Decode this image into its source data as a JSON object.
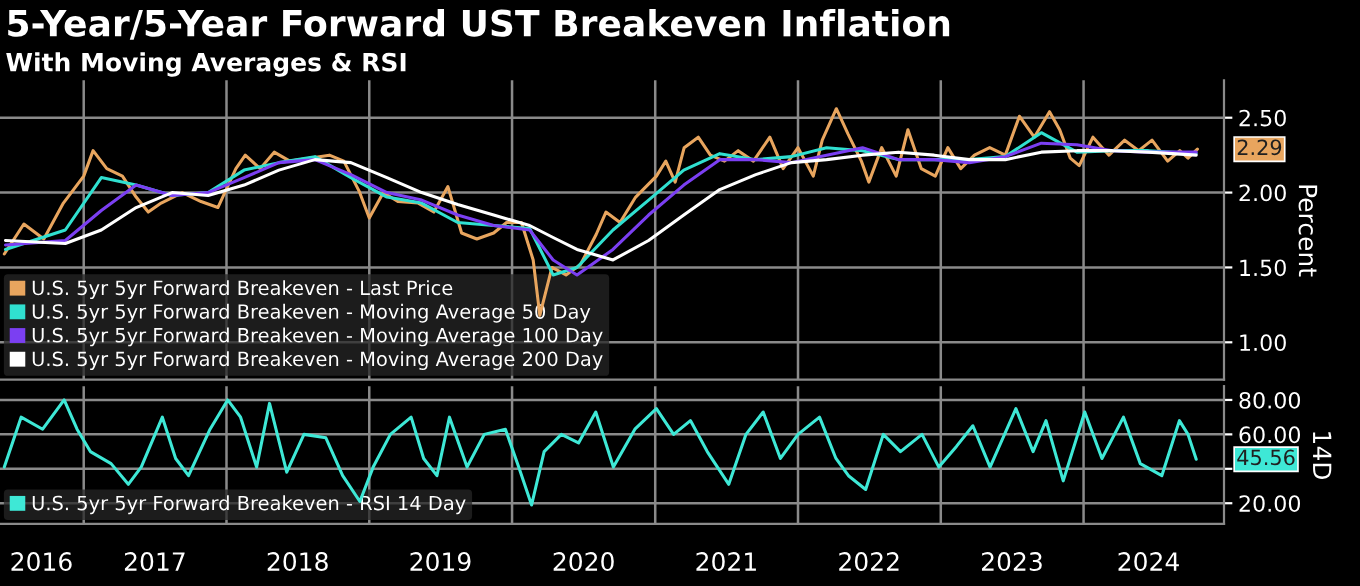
{
  "chart_data": [
    {
      "type": "line",
      "title": "5-Year/5-Year Forward UST Breakeven Inflation",
      "subtitle": "With Moving Averages & RSI",
      "ylabel": "Percent",
      "xlim": [
        "2016-06-01",
        "2024-12-25"
      ],
      "ylim": [
        0.75,
        2.75
      ],
      "xticks": [
        {
          "value": "2017-01-01",
          "label": null
        },
        {
          "value": "2018-01-01",
          "label": null
        },
        {
          "value": "2019-01-01",
          "label": null
        },
        {
          "value": "2020-01-01",
          "label": null
        },
        {
          "value": "2021-01-01",
          "label": null
        },
        {
          "value": "2022-01-01",
          "label": null
        },
        {
          "value": "2023-01-01",
          "label": null
        },
        {
          "value": "2024-01-01",
          "label": null
        }
      ],
      "yticks": [
        {
          "value": 1,
          "label": "1.00"
        },
        {
          "value": 1.5,
          "label": "1.50"
        },
        {
          "value": 2,
          "label": "2.00"
        },
        {
          "value": 2.5,
          "label": "2.50"
        }
      ],
      "tick_labels": "y",
      "grid": true,
      "legend": "bottom left",
      "annotations": [
        {
          "text": "2.29",
          "x": "2024-10-18",
          "y": 2.29
        }
      ],
      "series": [
        {
          "name": "U.S. 5yr 5yr Forward Breakeven - Last Price",
          "color": "#e8a55e",
          "x": [
            "2016-06-12",
            "2016-08-01",
            "2016-09-21",
            "2016-11-10",
            "2017-01-01",
            "2017-01-25",
            "2017-03-01",
            "2017-04-10",
            "2017-05-15",
            "2017-06-15",
            "2017-07-18",
            "2017-09-10",
            "2017-10-28",
            "2017-12-10",
            "2018-01-25",
            "2018-02-18",
            "2018-03-28",
            "2018-05-03",
            "2018-06-12",
            "2018-08-01",
            "2018-09-21",
            "2018-10-28",
            "2018-12-06",
            "2019-01-01",
            "2019-02-06",
            "2019-03-15",
            "2019-05-06",
            "2019-06-15",
            "2019-07-21",
            "2019-08-25",
            "2019-10-03",
            "2019-11-15",
            "2019-12-18",
            "2020-01-25",
            "2020-02-24",
            "2020-03-12",
            "2020-04-12",
            "2020-05-18",
            "2020-06-24",
            "2020-08-03",
            "2020-08-28",
            "2020-10-03",
            "2020-11-12",
            "2021-01-04",
            "2021-01-28",
            "2021-02-21",
            "2021-03-16",
            "2021-04-21",
            "2021-05-22",
            "2021-06-27",
            "2021-08-01",
            "2021-09-09",
            "2021-10-21",
            "2021-11-24",
            "2022-01-01",
            "2022-02-09",
            "2022-03-04",
            "2022-04-09",
            "2022-05-09",
            "2022-06-12",
            "2022-07-01",
            "2022-08-03",
            "2022-09-09",
            "2022-10-09",
            "2022-11-12",
            "2022-12-18",
            "2023-01-19",
            "2023-02-21",
            "2023-03-28",
            "2023-05-06",
            "2023-06-15",
            "2023-07-21",
            "2023-08-28",
            "2023-10-06",
            "2023-11-01",
            "2023-11-28",
            "2023-12-21",
            "2024-01-25",
            "2024-03-06",
            "2024-04-15",
            "2024-05-21",
            "2024-06-24",
            "2024-08-03",
            "2024-09-03",
            "2024-09-24",
            "2024-10-18"
          ],
          "values": [
            1.59,
            1.79,
            1.69,
            1.93,
            2.11,
            2.28,
            2.16,
            2.11,
            1.97,
            1.87,
            1.93,
            2.0,
            1.94,
            1.9,
            2.16,
            2.25,
            2.16,
            2.27,
            2.21,
            2.23,
            2.25,
            2.21,
            2.01,
            1.83,
            2.0,
            1.94,
            1.93,
            1.87,
            2.04,
            1.73,
            1.69,
            1.73,
            1.8,
            1.8,
            1.55,
            1.18,
            1.5,
            1.45,
            1.52,
            1.72,
            1.87,
            1.8,
            1.97,
            2.11,
            2.21,
            2.07,
            2.3,
            2.37,
            2.25,
            2.21,
            2.28,
            2.21,
            2.37,
            2.16,
            2.3,
            2.11,
            2.35,
            2.56,
            2.39,
            2.21,
            2.07,
            2.3,
            2.11,
            2.42,
            2.16,
            2.11,
            2.3,
            2.16,
            2.25,
            2.3,
            2.25,
            2.51,
            2.37,
            2.54,
            2.42,
            2.23,
            2.18,
            2.37,
            2.25,
            2.35,
            2.28,
            2.35,
            2.21,
            2.28,
            2.23,
            2.29
          ]
        },
        {
          "name": "U.S. 5yr 5yr Forward Breakeven - Moving Average 50 Day",
          "color": "#30e0d0",
          "x": [
            "2016-06-15",
            "2016-11-15",
            "2017-02-15",
            "2017-05-15",
            "2017-08-15",
            "2017-11-15",
            "2018-02-15",
            "2018-05-15",
            "2018-08-15",
            "2018-11-15",
            "2019-02-15",
            "2019-05-15",
            "2019-08-15",
            "2019-11-15",
            "2020-02-15",
            "2020-04-15",
            "2020-06-15",
            "2020-09-15",
            "2020-12-15",
            "2021-03-15",
            "2021-06-15",
            "2021-09-15",
            "2021-12-15",
            "2022-03-15",
            "2022-06-15",
            "2022-09-15",
            "2022-12-15",
            "2023-03-15",
            "2023-06-15",
            "2023-09-15",
            "2023-12-15",
            "2024-03-15",
            "2024-06-15",
            "2024-10-15"
          ],
          "values": [
            1.62,
            1.75,
            2.1,
            2.05,
            1.98,
            2.0,
            2.15,
            2.2,
            2.24,
            2.1,
            1.97,
            1.93,
            1.8,
            1.78,
            1.76,
            1.45,
            1.5,
            1.75,
            1.95,
            2.15,
            2.26,
            2.22,
            2.24,
            2.3,
            2.28,
            2.22,
            2.22,
            2.22,
            2.24,
            2.4,
            2.27,
            2.28,
            2.28,
            2.26
          ]
        },
        {
          "name": "U.S. 5yr 5yr Forward Breakeven - Moving Average 100 Day",
          "color": "#7b3ff2",
          "x": [
            "2016-06-15",
            "2016-11-15",
            "2017-02-15",
            "2017-05-15",
            "2017-08-15",
            "2017-11-15",
            "2018-02-15",
            "2018-05-15",
            "2018-08-15",
            "2018-11-15",
            "2019-02-15",
            "2019-05-15",
            "2019-08-15",
            "2019-11-15",
            "2020-02-15",
            "2020-04-15",
            "2020-06-15",
            "2020-09-15",
            "2020-12-15",
            "2021-03-15",
            "2021-06-15",
            "2021-09-15",
            "2021-12-15",
            "2022-03-15",
            "2022-06-15",
            "2022-09-15",
            "2022-12-15",
            "2023-03-15",
            "2023-06-15",
            "2023-09-15",
            "2023-12-15",
            "2024-03-15",
            "2024-06-15",
            "2024-10-15"
          ],
          "values": [
            1.65,
            1.68,
            1.88,
            2.05,
            1.98,
            2.0,
            2.1,
            2.2,
            2.22,
            2.12,
            2.0,
            1.95,
            1.85,
            1.78,
            1.75,
            1.55,
            1.45,
            1.62,
            1.85,
            2.05,
            2.22,
            2.22,
            2.2,
            2.25,
            2.3,
            2.22,
            2.22,
            2.2,
            2.24,
            2.33,
            2.32,
            2.28,
            2.27,
            2.27
          ]
        },
        {
          "name": "U.S. 5yr 5yr Forward Breakeven - Moving Average 200 Day",
          "color": "#ffffff",
          "x": [
            "2016-06-15",
            "2016-11-15",
            "2017-02-15",
            "2017-05-15",
            "2017-08-15",
            "2017-11-15",
            "2018-02-15",
            "2018-05-15",
            "2018-08-15",
            "2018-11-15",
            "2019-02-15",
            "2019-05-15",
            "2019-08-15",
            "2019-11-15",
            "2020-02-15",
            "2020-04-15",
            "2020-06-15",
            "2020-09-15",
            "2020-12-15",
            "2021-03-15",
            "2021-06-15",
            "2021-09-15",
            "2021-12-15",
            "2022-03-15",
            "2022-06-15",
            "2022-09-15",
            "2022-12-15",
            "2023-03-15",
            "2023-06-15",
            "2023-09-15",
            "2023-12-15",
            "2024-03-15",
            "2024-06-15",
            "2024-10-15"
          ],
          "values": [
            1.68,
            1.66,
            1.75,
            1.9,
            2.0,
            1.98,
            2.05,
            2.15,
            2.22,
            2.2,
            2.1,
            2.0,
            1.92,
            1.85,
            1.78,
            1.7,
            1.62,
            1.55,
            1.68,
            1.85,
            2.02,
            2.12,
            2.2,
            2.22,
            2.25,
            2.27,
            2.25,
            2.22,
            2.22,
            2.27,
            2.28,
            2.28,
            2.27,
            2.25
          ]
        }
      ]
    },
    {
      "type": "line",
      "ylabel": "14D",
      "xlim": [
        "2016-06-01",
        "2024-12-25"
      ],
      "ylim": [
        8,
        88
      ],
      "xticks": [
        {
          "value": "2016-09-15",
          "label": "2016"
        },
        {
          "value": "2017-01-01",
          "label": null
        },
        {
          "value": "2017-07-02",
          "label": "2017"
        },
        {
          "value": "2018-01-01",
          "label": null
        },
        {
          "value": "2018-07-02",
          "label": "2018"
        },
        {
          "value": "2019-01-01",
          "label": null
        },
        {
          "value": "2019-07-02",
          "label": "2019"
        },
        {
          "value": "2020-01-01",
          "label": null
        },
        {
          "value": "2020-07-02",
          "label": "2020"
        },
        {
          "value": "2021-01-01",
          "label": null
        },
        {
          "value": "2021-07-02",
          "label": "2021"
        },
        {
          "value": "2022-01-01",
          "label": null
        },
        {
          "value": "2022-07-02",
          "label": "2022"
        },
        {
          "value": "2023-01-01",
          "label": null
        },
        {
          "value": "2023-07-02",
          "label": "2023"
        },
        {
          "value": "2024-01-01",
          "label": null
        },
        {
          "value": "2024-06-15",
          "label": "2024"
        }
      ],
      "yticks": [
        {
          "value": 20,
          "label": "20.00"
        },
        {
          "value": 40,
          "label": null
        },
        {
          "value": 60,
          "label": "60.00"
        },
        {
          "value": 80,
          "label": "80.00"
        }
      ],
      "grid": true,
      "legend": "bottom left",
      "annotations": [
        {
          "text": "45.56",
          "x": "2024-10-15",
          "y": 45.56
        }
      ],
      "series": [
        {
          "name": "U.S. 5yr 5yr Forward Breakeven - RSI 14 Day",
          "color": "#3ee8d6",
          "x": [
            "2016-06-12",
            "2016-07-25",
            "2016-09-18",
            "2016-11-12",
            "2016-12-15",
            "2017-01-18",
            "2017-03-12",
            "2017-04-25",
            "2017-05-28",
            "2017-07-21",
            "2017-08-24",
            "2017-09-26",
            "2017-11-20",
            "2018-01-04",
            "2018-02-06",
            "2018-03-19",
            "2018-04-21",
            "2018-06-04",
            "2018-07-18",
            "2018-09-12",
            "2018-10-25",
            "2018-12-08",
            "2019-01-11",
            "2019-02-24",
            "2019-04-18",
            "2019-05-20",
            "2019-06-23",
            "2019-07-25",
            "2019-09-08",
            "2019-10-22",
            "2019-12-15",
            "2020-01-18",
            "2020-02-20",
            "2020-03-23",
            "2020-05-06",
            "2020-06-19",
            "2020-08-02",
            "2020-09-16",
            "2020-11-10",
            "2021-01-04",
            "2021-02-17",
            "2021-04-01",
            "2021-05-14",
            "2021-07-08",
            "2021-08-21",
            "2021-10-04",
            "2021-11-17",
            "2022-01-01",
            "2022-02-25",
            "2022-04-08",
            "2022-05-10",
            "2022-06-23",
            "2022-08-07",
            "2022-09-20",
            "2022-11-14",
            "2022-12-27",
            "2023-02-10",
            "2023-03-24",
            "2023-05-07",
            "2023-07-12",
            "2023-08-25",
            "2023-09-27",
            "2023-11-10",
            "2024-01-04",
            "2024-02-17",
            "2024-04-12",
            "2024-05-25",
            "2024-07-19",
            "2024-09-02",
            "2024-09-24",
            "2024-10-15"
          ],
          "values": [
            41,
            70,
            63,
            80,
            63,
            50,
            43,
            31,
            41,
            70,
            46,
            36,
            63,
            80,
            70,
            41,
            78,
            38,
            60,
            58,
            36,
            21,
            41,
            60,
            70,
            46,
            36,
            70,
            41,
            60,
            63,
            41,
            19,
            50,
            60,
            55,
            73,
            41,
            63,
            75,
            60,
            68,
            50,
            31,
            60,
            73,
            46,
            60,
            70,
            46,
            36,
            28,
            60,
            50,
            60,
            41,
            53,
            65,
            41,
            75,
            50,
            68,
            33,
            73,
            46,
            70,
            43,
            36,
            68,
            60,
            45.56
          ]
        }
      ]
    }
  ]
}
